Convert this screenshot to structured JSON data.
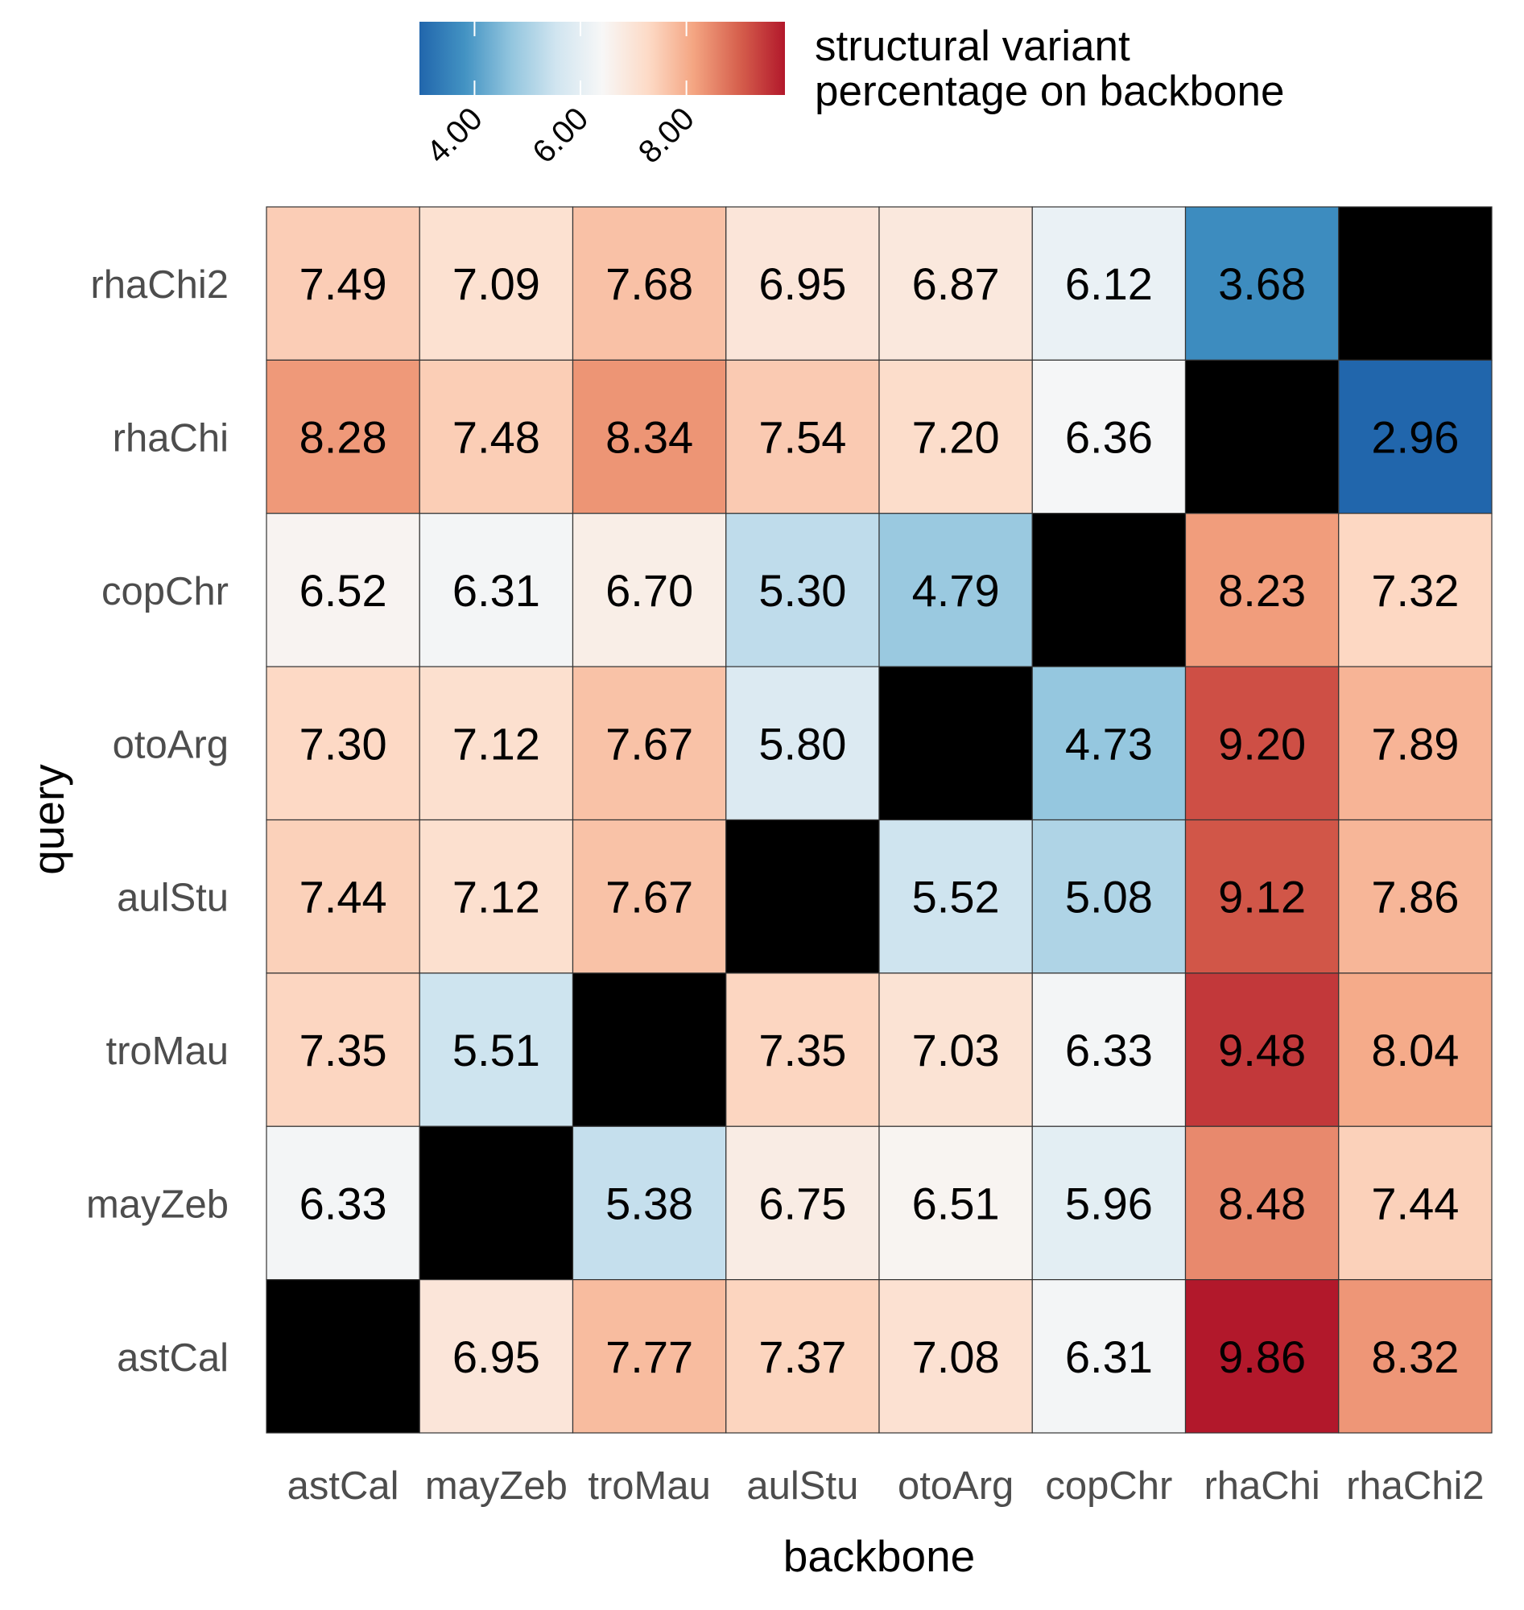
{
  "chart_data": {
    "type": "heatmap",
    "title": "",
    "xlabel": "backbone",
    "ylabel": "query",
    "x_categories": [
      "astCal",
      "mayZeb",
      "troMau",
      "aulStu",
      "otoArg",
      "copChr",
      "rhaChi",
      "rhaChi2"
    ],
    "y_categories_top_to_bottom": [
      "rhaChi2",
      "rhaChi",
      "copChr",
      "otoArg",
      "aulStu",
      "troMau",
      "mayZeb",
      "astCal"
    ],
    "values": [
      [
        "7.49",
        "7.09",
        "7.68",
        "6.95",
        "6.87",
        "6.12",
        "3.68",
        null
      ],
      [
        "8.28",
        "7.48",
        "8.34",
        "7.54",
        "7.20",
        "6.36",
        null,
        "2.96"
      ],
      [
        "6.52",
        "6.31",
        "6.70",
        "5.30",
        "4.79",
        null,
        "8.23",
        "7.32"
      ],
      [
        "7.30",
        "7.12",
        "7.67",
        "5.80",
        null,
        "4.73",
        "9.20",
        "7.89"
      ],
      [
        "7.44",
        "7.12",
        "7.67",
        null,
        "5.52",
        "5.08",
        "9.12",
        "7.86"
      ],
      [
        "7.35",
        "5.51",
        null,
        "7.35",
        "7.03",
        "6.33",
        "9.48",
        "8.04"
      ],
      [
        "6.33",
        null,
        "5.38",
        "6.75",
        "6.51",
        "5.96",
        "8.48",
        "7.44"
      ],
      [
        null,
        "6.95",
        "7.77",
        "7.37",
        "7.08",
        "6.31",
        "9.86",
        "8.32"
      ]
    ],
    "missing_color": "#000000",
    "colorscale": {
      "name": "RdBu (reversed)",
      "range": [
        2.96,
        9.86
      ],
      "stops": [
        "#2166ac",
        "#4393c3",
        "#92c5de",
        "#d1e5f0",
        "#f7f7f7",
        "#fddbc7",
        "#f4a582",
        "#d6604d",
        "#b2182b"
      ]
    },
    "legend": {
      "title_lines": [
        "structural variant",
        "percentage on backbone"
      ],
      "ticks": [
        4,
        6,
        8
      ],
      "tick_labels": [
        "4.00",
        "6.00",
        "8.00"
      ],
      "position": "top"
    }
  }
}
